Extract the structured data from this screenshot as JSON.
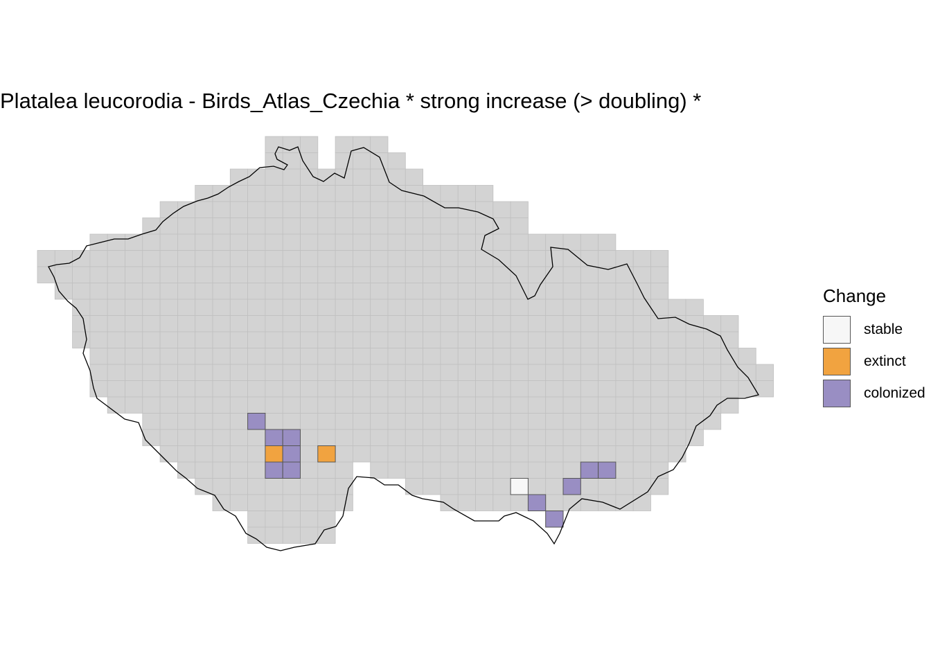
{
  "title": "Platalea leucorodia - Birds_Atlas_Czechia * strong increase (> doubling) *",
  "legend": {
    "title": "Change",
    "items": [
      {
        "label": "stable",
        "color": "#f7f7f7"
      },
      {
        "label": "extinct",
        "color": "#f1a340"
      },
      {
        "label": "colonized",
        "color": "#998ec3"
      }
    ]
  },
  "grid_color": "#d3d3d3",
  "chart_data": {
    "type": "heatmap",
    "description_of_values": "grid cells (column, row) of the atlas square grid with change status",
    "cells": [
      {
        "col": 12,
        "row": 17,
        "status": "colonized"
      },
      {
        "col": 13,
        "row": 18,
        "status": "colonized"
      },
      {
        "col": 14,
        "row": 18,
        "status": "colonized"
      },
      {
        "col": 13,
        "row": 19,
        "status": "extinct"
      },
      {
        "col": 14,
        "row": 19,
        "status": "colonized"
      },
      {
        "col": 16,
        "row": 19,
        "status": "extinct"
      },
      {
        "col": 13,
        "row": 20,
        "status": "colonized"
      },
      {
        "col": 14,
        "row": 20,
        "status": "colonized"
      },
      {
        "col": 27,
        "row": 21,
        "status": "stable"
      },
      {
        "col": 28,
        "row": 22,
        "status": "colonized"
      },
      {
        "col": 29,
        "row": 23,
        "status": "colonized"
      },
      {
        "col": 30,
        "row": 21,
        "status": "colonized"
      },
      {
        "col": 31,
        "row": 20,
        "status": "colonized"
      },
      {
        "col": 32,
        "row": 20,
        "status": "colonized"
      }
    ]
  }
}
